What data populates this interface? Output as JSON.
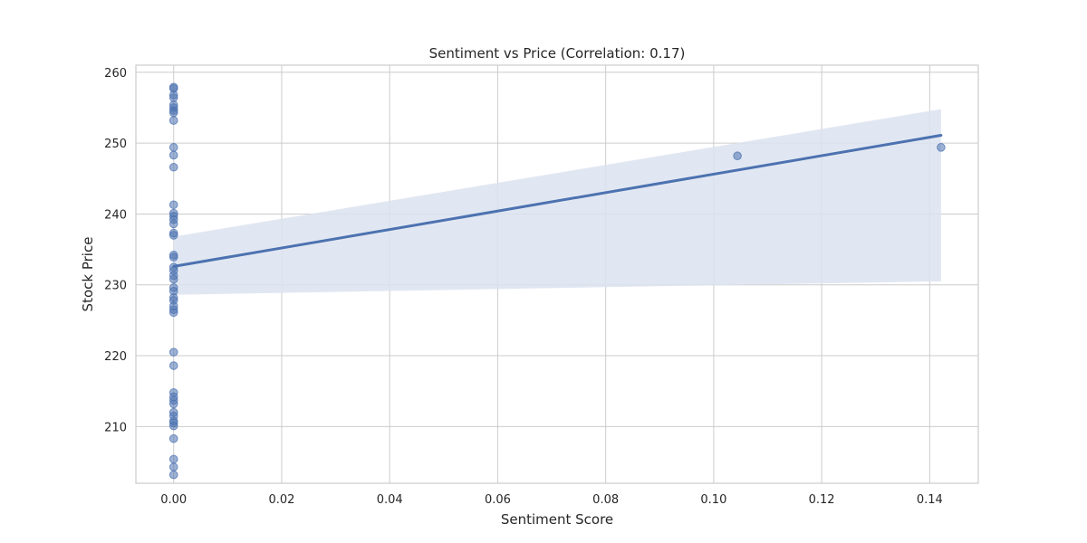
{
  "chart_data": {
    "type": "scatter",
    "title": "Sentiment vs Price (Correlation: 0.17)",
    "xlabel": "Sentiment Score",
    "ylabel": "Stock Price",
    "xlim": [
      -0.007,
      0.149
    ],
    "ylim": [
      202.0,
      261.0
    ],
    "x_ticks": [
      0.0,
      0.02,
      0.04,
      0.06,
      0.08,
      0.1,
      0.12,
      0.14
    ],
    "x_tick_labels": [
      "0.00",
      "0.02",
      "0.04",
      "0.06",
      "0.08",
      "0.10",
      "0.12",
      "0.14"
    ],
    "y_ticks": [
      210,
      220,
      230,
      240,
      250,
      260
    ],
    "y_tick_labels": [
      "210",
      "220",
      "230",
      "240",
      "250",
      "260"
    ],
    "grid": true,
    "colors": {
      "points": "#4c72b0",
      "line": "#4c72b0",
      "band": "#dce3f0",
      "grid": "#cccccc",
      "frame": "#cccccc",
      "text": "#262626"
    },
    "points": [
      {
        "x": 0.0,
        "y": 257.9
      },
      {
        "x": 0.0,
        "y": 257.7
      },
      {
        "x": 0.0,
        "y": 256.8
      },
      {
        "x": 0.0,
        "y": 256.4
      },
      {
        "x": 0.0,
        "y": 255.4
      },
      {
        "x": 0.0,
        "y": 255.0
      },
      {
        "x": 0.0,
        "y": 254.6
      },
      {
        "x": 0.0,
        "y": 254.3
      },
      {
        "x": 0.0,
        "y": 253.2
      },
      {
        "x": 0.0,
        "y": 249.4
      },
      {
        "x": 0.0,
        "y": 248.3
      },
      {
        "x": 0.0,
        "y": 246.6
      },
      {
        "x": 0.0,
        "y": 241.3
      },
      {
        "x": 0.0,
        "y": 240.1
      },
      {
        "x": 0.0,
        "y": 239.7
      },
      {
        "x": 0.0,
        "y": 239.2
      },
      {
        "x": 0.0,
        "y": 238.6
      },
      {
        "x": 0.0,
        "y": 237.3
      },
      {
        "x": 0.0,
        "y": 237.0
      },
      {
        "x": 0.0,
        "y": 234.2
      },
      {
        "x": 0.0,
        "y": 233.9
      },
      {
        "x": 0.0,
        "y": 232.5
      },
      {
        "x": 0.0,
        "y": 232.0
      },
      {
        "x": 0.0,
        "y": 231.3
      },
      {
        "x": 0.0,
        "y": 230.8
      },
      {
        "x": 0.0,
        "y": 229.6
      },
      {
        "x": 0.0,
        "y": 229.1
      },
      {
        "x": 0.0,
        "y": 228.2
      },
      {
        "x": 0.0,
        "y": 227.8
      },
      {
        "x": 0.0,
        "y": 227.0
      },
      {
        "x": 0.0,
        "y": 226.5
      },
      {
        "x": 0.0,
        "y": 226.1
      },
      {
        "x": 0.0,
        "y": 220.5
      },
      {
        "x": 0.0,
        "y": 218.6
      },
      {
        "x": 0.0,
        "y": 214.8
      },
      {
        "x": 0.0,
        "y": 214.2
      },
      {
        "x": 0.0,
        "y": 213.7
      },
      {
        "x": 0.0,
        "y": 213.2
      },
      {
        "x": 0.0,
        "y": 212.0
      },
      {
        "x": 0.0,
        "y": 211.5
      },
      {
        "x": 0.0,
        "y": 210.8
      },
      {
        "x": 0.0,
        "y": 210.5
      },
      {
        "x": 0.0,
        "y": 210.1
      },
      {
        "x": 0.0,
        "y": 208.3
      },
      {
        "x": 0.0,
        "y": 205.4
      },
      {
        "x": 0.0,
        "y": 204.3
      },
      {
        "x": 0.0,
        "y": 203.2
      },
      {
        "x": 0.1044,
        "y": 248.2
      },
      {
        "x": 0.1421,
        "y": 249.4
      }
    ],
    "regression_line": {
      "x": [
        0.0,
        0.1421
      ],
      "y": [
        232.6,
        251.1
      ]
    },
    "confidence_band": {
      "x": [
        0.0,
        0.1421
      ],
      "upper": [
        236.8,
        254.8
      ],
      "lower": [
        228.6,
        230.5
      ]
    }
  }
}
